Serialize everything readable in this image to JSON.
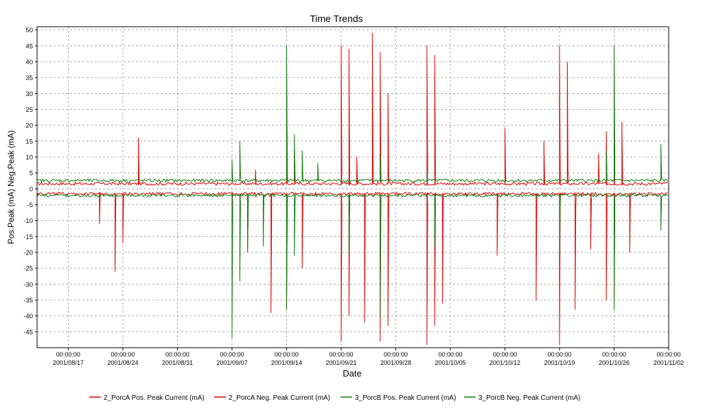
{
  "chart_data": {
    "type": "line",
    "title": "Time Trends",
    "xlabel": "Date",
    "ylabel": "Pos.Peak (mA) Neg.Peak (mA)",
    "x_range": [
      "2001-08-13",
      "2001-11-02"
    ],
    "ylim": [
      -50,
      51
    ],
    "grid": true,
    "legend_position": "bottom",
    "y_ticks": [
      50,
      45,
      40,
      35,
      30,
      25,
      20,
      15,
      10,
      5,
      0,
      -5,
      -10,
      -15,
      -20,
      -25,
      -30,
      -35,
      -40,
      -45
    ],
    "x_ticks": [
      {
        "time": "00:00:00",
        "date": "2001/08/17"
      },
      {
        "time": "00:00:00",
        "date": "2001/08/24"
      },
      {
        "time": "00:00:00",
        "date": "2001/08/31"
      },
      {
        "time": "00:00:00",
        "date": "2001/09/07"
      },
      {
        "time": "00:00:00",
        "date": "2001/09/14"
      },
      {
        "time": "00:00:00",
        "date": "2001/09/21"
      },
      {
        "time": "00:00:00",
        "date": "2001/09/28"
      },
      {
        "time": "00:00:00",
        "date": "2001/10/05"
      },
      {
        "time": "00:00:00",
        "date": "2001/10/12"
      },
      {
        "time": "00:00:00",
        "date": "2001/10/19"
      },
      {
        "time": "00:00:00",
        "date": "2001/10/26"
      },
      {
        "time": "00:00:00",
        "date": "2001/11/02"
      }
    ],
    "series": [
      {
        "name": "2_PorcA Pos. Peak Current (mA)",
        "color": "#dd0000",
        "baseline": 1.5,
        "x": [
          "2001-08-13",
          "2001-08-20",
          "2001-08-26",
          "2001-09-07",
          "2001-09-10",
          "2001-09-14",
          "2001-09-15",
          "2001-09-20",
          "2001-09-21",
          "2001-09-22",
          "2001-09-23",
          "2001-09-25",
          "2001-09-26",
          "2001-09-27",
          "2001-09-28",
          "2001-10-02",
          "2001-10-03",
          "2001-10-04",
          "2001-10-12",
          "2001-10-17",
          "2001-10-19",
          "2001-10-19",
          "2001-10-20",
          "2001-10-24",
          "2001-10-25",
          "2001-10-26",
          "2001-10-27",
          "2001-11-02"
        ],
        "y": [
          2,
          2,
          16,
          2,
          6,
          38,
          12,
          2,
          45,
          44,
          10,
          49,
          43,
          30,
          2,
          45,
          42,
          2,
          19,
          15,
          45,
          43,
          40,
          11,
          18,
          38,
          21,
          2
        ]
      },
      {
        "name": "2_PorcA Neg. Peak Current (mA)",
        "color": "#dd0000",
        "baseline": -1.5,
        "x": [
          "2001-08-13",
          "2001-08-21",
          "2001-08-23",
          "2001-08-24",
          "2001-09-02",
          "2001-09-07",
          "2001-09-09",
          "2001-09-12",
          "2001-09-14",
          "2001-09-16",
          "2001-09-20",
          "2001-09-21",
          "2001-09-22",
          "2001-09-24",
          "2001-09-26",
          "2001-09-27",
          "2001-09-28",
          "2001-10-02",
          "2001-10-03",
          "2001-10-04",
          "2001-10-11",
          "2001-10-16",
          "2001-10-19",
          "2001-10-19",
          "2001-10-21",
          "2001-10-23",
          "2001-10-25",
          "2001-10-26",
          "2001-10-28",
          "2001-11-02"
        ],
        "y": [
          -2,
          -11,
          -26,
          -17,
          -2,
          -27,
          -19,
          -39,
          -38,
          -25,
          -2,
          -48,
          -40,
          -42,
          -48,
          -43,
          -2,
          -49,
          -43,
          -36,
          -21,
          -35,
          -49,
          -44,
          -38,
          -19,
          -35,
          -36,
          -20,
          -2
        ]
      },
      {
        "name": "3_PorcB Pos. Peak Current (mA)",
        "color": "#0a7a0a",
        "baseline": 2.5,
        "x": [
          "2001-08-13",
          "2001-09-06",
          "2001-09-07",
          "2001-09-08",
          "2001-09-14",
          "2001-09-15",
          "2001-09-16",
          "2001-09-18",
          "2001-09-20",
          "2001-09-26",
          "2001-10-02",
          "2001-10-10",
          "2001-10-25",
          "2001-10-26",
          "2001-11-01",
          "2001-11-02"
        ],
        "y": [
          2.5,
          3,
          9,
          15,
          45,
          17,
          12,
          8,
          4,
          11,
          5,
          3,
          12,
          45,
          14,
          2.5
        ]
      },
      {
        "name": "3_PorcB Neg. Peak Current (mA)",
        "color": "#0a7a0a",
        "baseline": -2,
        "x": [
          "2001-08-13",
          "2001-09-06",
          "2001-09-07",
          "2001-09-08",
          "2001-09-09",
          "2001-09-11",
          "2001-09-14",
          "2001-09-15",
          "2001-09-22",
          "2001-09-26",
          "2001-10-03",
          "2001-10-19",
          "2001-10-26",
          "2001-11-01",
          "2001-11-02"
        ],
        "y": [
          -2,
          -3,
          -47,
          -29,
          -20,
          -18,
          -38,
          -21,
          -20,
          -40,
          -18,
          -22,
          -38,
          -13,
          -2
        ]
      }
    ]
  }
}
